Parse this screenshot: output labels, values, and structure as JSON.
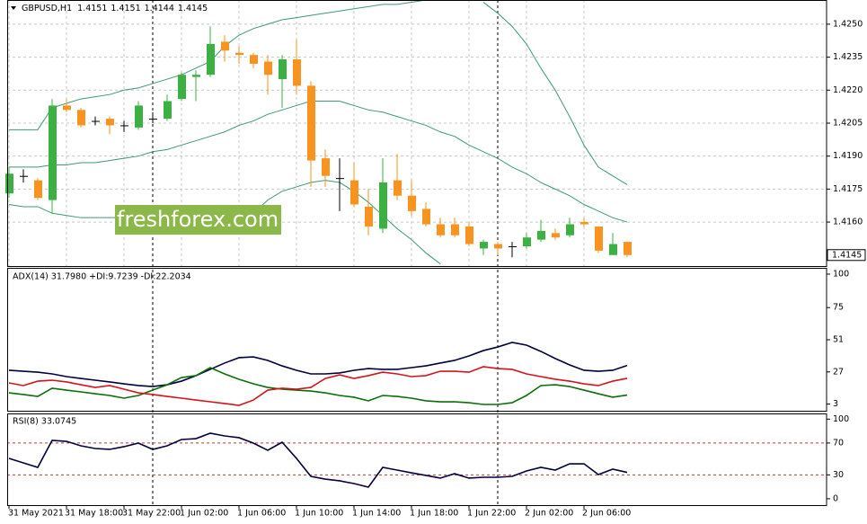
{
  "chart_data": [
    {
      "type": "candlestick",
      "title": "GBPUSD,H1",
      "last_ohlc": [
        1.4151,
        1.4151,
        1.4144,
        1.4145
      ],
      "categories": [
        "31 May 2021",
        null,
        null,
        null,
        "31 May 18:00",
        null,
        null,
        null,
        "31 May 22:00",
        null,
        null,
        null,
        "1 Jun 02:00",
        null,
        null,
        null,
        "1 Jun 06:00",
        null,
        null,
        null,
        "1 Jun 10:00",
        null,
        null,
        null,
        "1 Jun 14:00",
        null,
        null,
        null,
        "1 Jun 18:00",
        null,
        null,
        null,
        "1 Jun 22:00",
        null,
        null,
        null,
        "2 Jun 02:00",
        null,
        null,
        null,
        "2 Jun 06:00",
        null,
        null,
        null
      ],
      "open": [
        1.4173,
        1.4181,
        1.4179,
        1.417,
        1.4213,
        1.4211,
        1.4206,
        1.4207,
        1.4204,
        1.4203,
        1.4207,
        1.4207,
        1.4216,
        1.4226,
        1.4227,
        1.4242,
        1.4237,
        1.4236,
        1.4233,
        1.4225,
        1.4234,
        1.4222,
        1.4189,
        1.418,
        1.4179,
        1.4167,
        1.4157,
        1.4179,
        1.4172,
        1.4166,
        1.4159,
        1.4159,
        1.4158,
        1.4148,
        1.415,
        1.4149,
        1.4149,
        1.4152,
        1.4155,
        1.4154,
        1.416,
        1.4158,
        1.4145,
        1.4151
      ],
      "high": [
        1.4185,
        1.4184,
        1.418,
        1.4216,
        1.4216,
        1.4212,
        1.4208,
        1.4208,
        1.4206,
        1.4215,
        1.421,
        1.4218,
        1.4228,
        1.4229,
        1.4249,
        1.4245,
        1.424,
        1.4237,
        1.4236,
        1.4236,
        1.4243,
        1.4224,
        1.4193,
        1.4189,
        1.4187,
        1.4175,
        1.4189,
        1.4191,
        1.4179,
        1.4169,
        1.4162,
        1.4162,
        1.416,
        1.4152,
        1.4151,
        1.4151,
        1.4155,
        1.4161,
        1.4157,
        1.4162,
        1.4162,
        1.4158,
        1.4155,
        1.4151
      ],
      "low": [
        1.4171,
        1.4178,
        1.417,
        1.4164,
        1.421,
        1.4203,
        1.4204,
        1.42,
        1.4201,
        1.4202,
        1.4205,
        1.4206,
        1.4215,
        1.4215,
        1.4226,
        1.4233,
        1.4232,
        1.423,
        1.4218,
        1.4212,
        1.4218,
        1.4176,
        1.4176,
        1.4165,
        1.4167,
        1.4154,
        1.4155,
        1.417,
        1.4163,
        1.4158,
        1.4153,
        1.4153,
        1.4149,
        1.4145,
        1.4145,
        1.4144,
        1.4148,
        1.4151,
        1.4152,
        1.4153,
        1.4158,
        1.4146,
        1.4145,
        1.4144
      ],
      "close": [
        1.4182,
        1.4181,
        1.4171,
        1.4213,
        1.4211,
        1.4204,
        1.4206,
        1.4204,
        1.4204,
        1.4213,
        1.4207,
        1.4215,
        1.4227,
        1.4227,
        1.4241,
        1.4238,
        1.4236,
        1.4232,
        1.4227,
        1.4234,
        1.4222,
        1.4188,
        1.4181,
        1.418,
        1.4168,
        1.4158,
        1.4178,
        1.4172,
        1.4165,
        1.4159,
        1.4154,
        1.4154,
        1.415,
        1.4151,
        1.4148,
        1.4149,
        1.4153,
        1.4156,
        1.4153,
        1.4159,
        1.4159,
        1.4147,
        1.415,
        1.4145
      ],
      "up_color": "#3cb043",
      "down_color": "#f7931e",
      "doji_color": "#000000",
      "series": [
        {
          "color": "#3d9970",
          "values": [
            1.4202,
            1.4202,
            1.4202,
            1.4212,
            1.4214,
            1.4216,
            1.4217,
            1.4218,
            1.422,
            1.4221,
            1.4223,
            1.4225,
            1.4227,
            1.423,
            1.4233,
            1.424,
            1.4245,
            1.4248,
            1.425,
            1.4252,
            1.4253,
            1.4254,
            1.4255,
            1.4256,
            1.4257,
            1.4258,
            1.4259,
            1.4259,
            1.426,
            1.4261,
            null,
            null,
            null,
            1.426,
            1.4255,
            1.4249,
            1.4241,
            1.423,
            1.422,
            1.4208,
            1.4195,
            1.4185,
            1.4181,
            1.4177
          ]
        },
        {
          "color": "#3d9970",
          "values": [
            1.4185,
            1.4185,
            1.4185,
            1.4186,
            1.4186,
            1.4187,
            1.4187,
            1.4188,
            1.4189,
            1.419,
            1.4192,
            1.4193,
            1.4195,
            1.4197,
            1.4199,
            1.4201,
            1.4204,
            1.4206,
            1.4209,
            1.4211,
            1.4213,
            1.4215,
            1.4215,
            1.4215,
            1.4213,
            1.4211,
            1.421,
            1.4208,
            1.4206,
            1.4204,
            1.4201,
            1.4199,
            1.4195,
            1.4192,
            1.4189,
            1.4185,
            1.4182,
            1.4178,
            1.4175,
            1.4172,
            1.4168,
            1.4165,
            1.4162,
            1.416
          ]
        },
        {
          "color": "#3d9970",
          "values": [
            1.4168,
            1.4167,
            1.4167,
            1.4164,
            1.4163,
            1.4162,
            1.4162,
            1.4162,
            1.4162,
            1.4162,
            1.4162,
            1.4162,
            1.4162,
            1.4162,
            1.4163,
            1.4163,
            1.4163,
            1.4164,
            1.417,
            1.4174,
            1.4176,
            1.4178,
            1.4179,
            1.4178,
            1.4174,
            1.4169,
            1.4163,
            1.4157,
            1.4152,
            1.4146,
            1.4141,
            null,
            null,
            null,
            null,
            null,
            null,
            null,
            null,
            null,
            null,
            null,
            null,
            null
          ]
        }
      ],
      "ylim": [
        1.414,
        1.4261
      ],
      "yticks": [
        {
          "value": 1.425,
          "label": "1.4250"
        },
        1.4235,
        {
          "value": 1.422,
          "label": "1.4220"
        },
        1.4205,
        {
          "value": 1.419,
          "label": "1.4190"
        },
        1.4175,
        {
          "value": 1.416,
          "label": "1.4160"
        }
      ],
      "current_price": 1.4145,
      "grid": true,
      "watermark": "freshforex.com"
    },
    {
      "type": "line",
      "title": "ADX(14) 31.7980 +DI:9.7239 -DI:22.2034",
      "series": [
        {
          "color": "#00003c",
          "values": [
            28.2,
            27.5,
            26.8,
            25.5,
            23.5,
            22.1,
            20.8,
            19.5,
            18.1,
            16.8,
            16.1,
            17.4,
            20.1,
            24.2,
            28.9,
            33.6,
            37.6,
            38.2,
            35.6,
            31.5,
            28.2,
            25.5,
            25.5,
            26.2,
            28.2,
            29.5,
            28.9,
            28.9,
            30.2,
            31.5,
            33.6,
            35.6,
            38.9,
            42.9,
            45.6,
            49.0,
            47.0,
            42.3,
            37.0,
            32.2,
            28.2,
            27.5,
            28.2,
            31.8
          ]
        },
        {
          "color": "#0b6e0b",
          "values": [
            11.4,
            10.1,
            8.7,
            14.8,
            13.4,
            12.1,
            10.7,
            9.4,
            7.4,
            9.4,
            13.4,
            17.4,
            22.8,
            24.2,
            30.2,
            25.5,
            21.5,
            18.1,
            15.4,
            14.1,
            13.4,
            12.7,
            11.4,
            9.4,
            8.1,
            5.4,
            9.4,
            8.7,
            7.4,
            5.4,
            4.7,
            4.7,
            4.0,
            2.7,
            2.7,
            4.0,
            9.4,
            16.8,
            17.4,
            16.1,
            13.4,
            10.7,
            8.1,
            9.7
          ]
        },
        {
          "color": "#d4141c",
          "values": [
            18.8,
            16.8,
            20.1,
            20.8,
            19.5,
            17.4,
            15.4,
            16.8,
            14.1,
            11.4,
            10.1,
            8.7,
            7.4,
            6.0,
            4.7,
            3.4,
            2.0,
            6.0,
            13.4,
            14.8,
            14.1,
            15.4,
            22.1,
            24.8,
            22.1,
            24.2,
            26.8,
            25.5,
            23.5,
            24.2,
            27.5,
            27.5,
            26.8,
            30.9,
            29.5,
            28.9,
            25.5,
            23.5,
            21.5,
            20.1,
            18.1,
            16.8,
            20.1,
            22.2
          ]
        }
      ],
      "ylim": [
        -2,
        104
      ],
      "yticks": [
        100,
        75,
        51,
        27,
        3
      ],
      "grid": false
    },
    {
      "type": "line",
      "title": "RSI(8) 33.0745",
      "series": [
        {
          "color": "#00003c",
          "values": [
            50.7,
            45.1,
            39.4,
            73.3,
            72.1,
            66.5,
            63.1,
            62.0,
            65.4,
            69.9,
            62.0,
            66.5,
            74.4,
            75.5,
            82.3,
            78.9,
            76.7,
            69.9,
            60.9,
            71.0,
            50.7,
            28.1,
            24.7,
            22.5,
            19.1,
            14.6,
            39.4,
            36.0,
            32.6,
            29.3,
            25.9,
            31.5,
            25.9,
            27.0,
            27.0,
            28.1,
            34.9,
            39.4,
            36.0,
            43.9,
            43.9,
            30.4,
            37.2,
            33.1
          ]
        }
      ],
      "levels": [
        70,
        30
      ],
      "level_color": "#c0392b",
      "ylim": [
        -8,
        106
      ],
      "yticks": [
        100,
        70,
        30,
        0
      ],
      "grid": false
    }
  ]
}
